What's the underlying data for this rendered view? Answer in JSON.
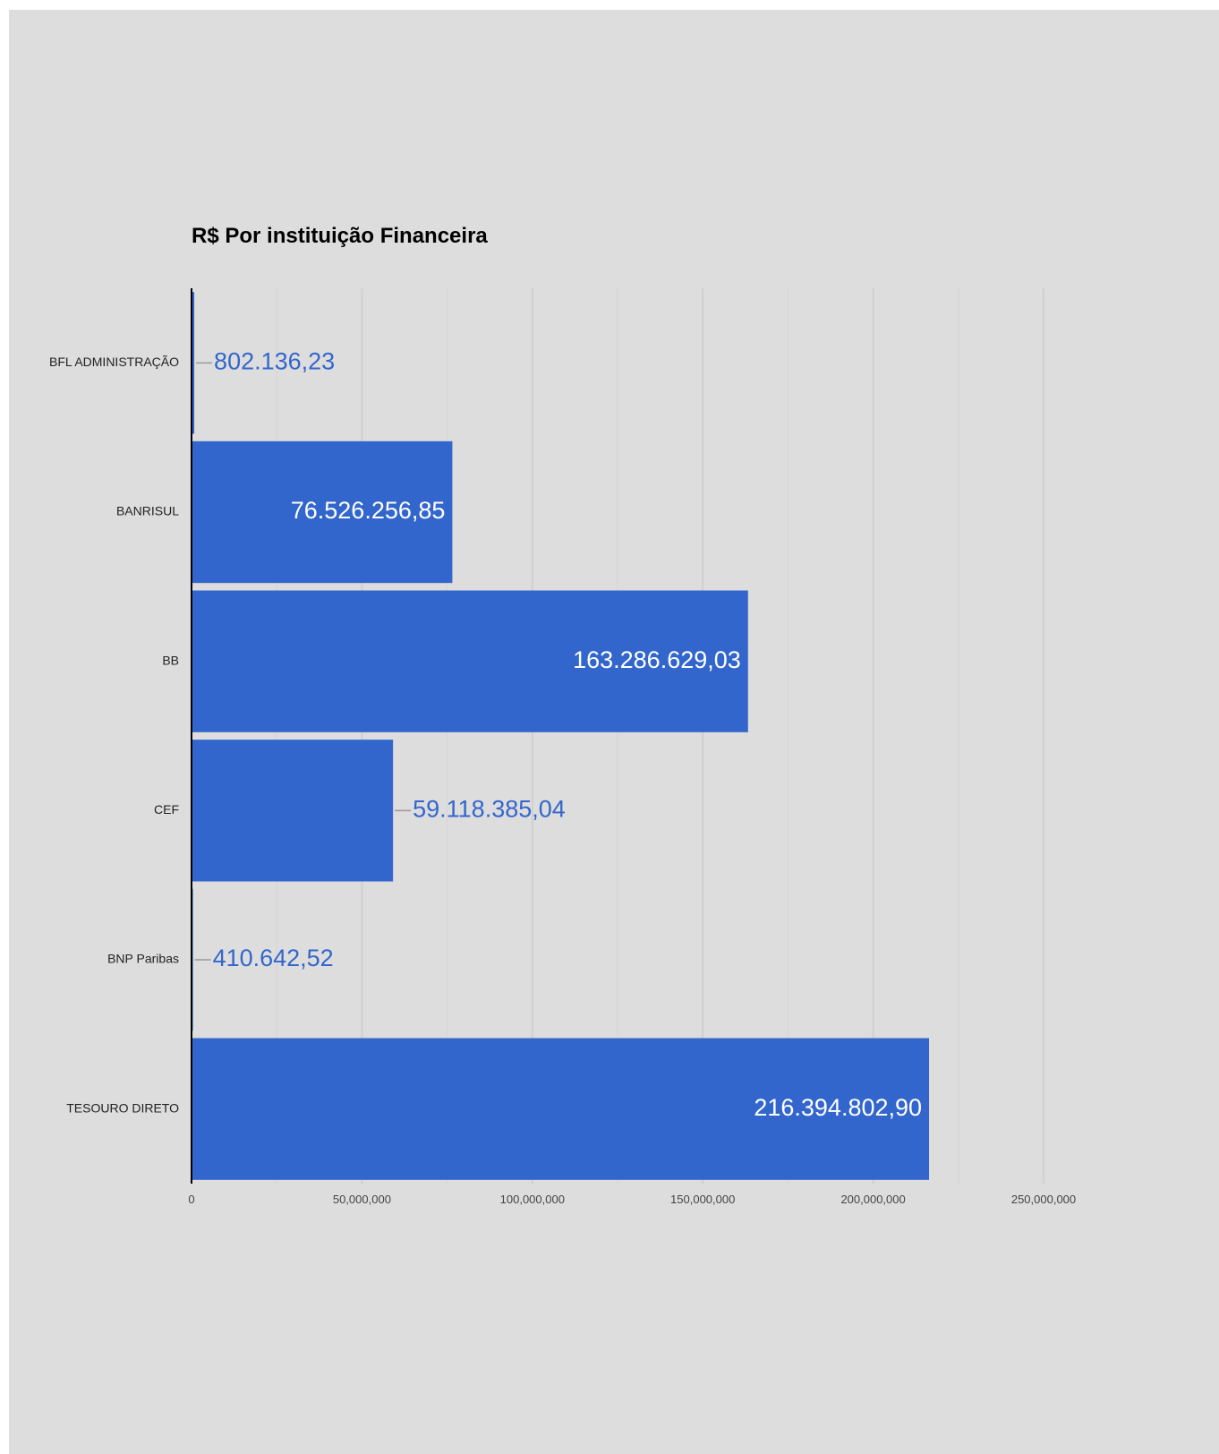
{
  "chart_data": {
    "type": "bar",
    "orientation": "horizontal",
    "title": "R$ Por instituição Financeira",
    "categories": [
      "BFL ADMINISTRAÇÃO",
      "BANRISUL",
      "BB",
      "CEF",
      "BNP Paribas",
      "TESOURO DIRETO"
    ],
    "series": [
      {
        "values": [
          802136.23,
          76526256.85,
          163286629.03,
          59118385.04,
          410642.52,
          216394802.9
        ],
        "labels": [
          "802.136,23",
          "76.526.256,85",
          "163.286.629,03",
          "59.118.385,04",
          "410.642,52",
          "216.394.802,90"
        ]
      }
    ],
    "xlim": [
      0,
      250000000
    ],
    "xticks": [
      0,
      50000000,
      100000000,
      150000000,
      200000000,
      250000000
    ],
    "xtick_labels": [
      "0",
      "50,000,000",
      "100,000,000",
      "150,000,000",
      "200,000,000",
      "250,000,000"
    ],
    "minor_gridlines": true,
    "grid": true,
    "legend": "none",
    "colors": {
      "bar": "#3366cc",
      "label_inside": "#ffffff",
      "label_outside": "#3366cc",
      "background": "#dddddd",
      "gridline": "#cccccc",
      "minor_gridline": "#d5d5d5",
      "axis": "#000000",
      "category_text": "#222222",
      "tick_text": "#444444",
      "title": "#000000"
    }
  }
}
